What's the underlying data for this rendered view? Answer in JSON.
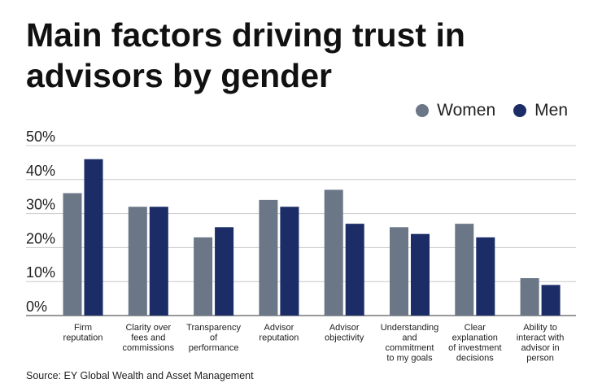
{
  "title": "Main factors driving trust in advisors by gender",
  "source": "Source: EY Global Wealth and Asset Management",
  "colors": {
    "women": "#6b7787",
    "men": "#1b2c66",
    "grid": "#c9c9c9",
    "axis": "#333333"
  },
  "chart_data": {
    "type": "bar",
    "title": "Main factors driving trust in advisors by gender",
    "xlabel": "",
    "ylabel": "",
    "ylim": [
      0,
      50
    ],
    "yticks": [
      0,
      10,
      20,
      30,
      40,
      50
    ],
    "ytick_labels": [
      "0%",
      "10%",
      "20%",
      "30%",
      "40%",
      "50%"
    ],
    "legend_position": "top-right",
    "grid": true,
    "categories": [
      [
        "Firm",
        "reputation"
      ],
      [
        "Clarity over",
        "fees and",
        "commissions"
      ],
      [
        "Transparency",
        "of",
        "performance"
      ],
      [
        "Advisor",
        "reputation"
      ],
      [
        "Advisor",
        "objectivity"
      ],
      [
        "Understanding",
        "and",
        "commitment",
        "to my goals"
      ],
      [
        "Clear",
        "explanation",
        "of investment",
        "decisions"
      ],
      [
        "Ability to",
        "interact with",
        "advisor in",
        "person"
      ]
    ],
    "series": [
      {
        "name": "Women",
        "values": [
          36,
          32,
          23,
          34,
          37,
          26,
          27,
          11
        ]
      },
      {
        "name": "Men",
        "values": [
          46,
          32,
          26,
          32,
          27,
          24,
          23,
          9
        ]
      }
    ]
  }
}
